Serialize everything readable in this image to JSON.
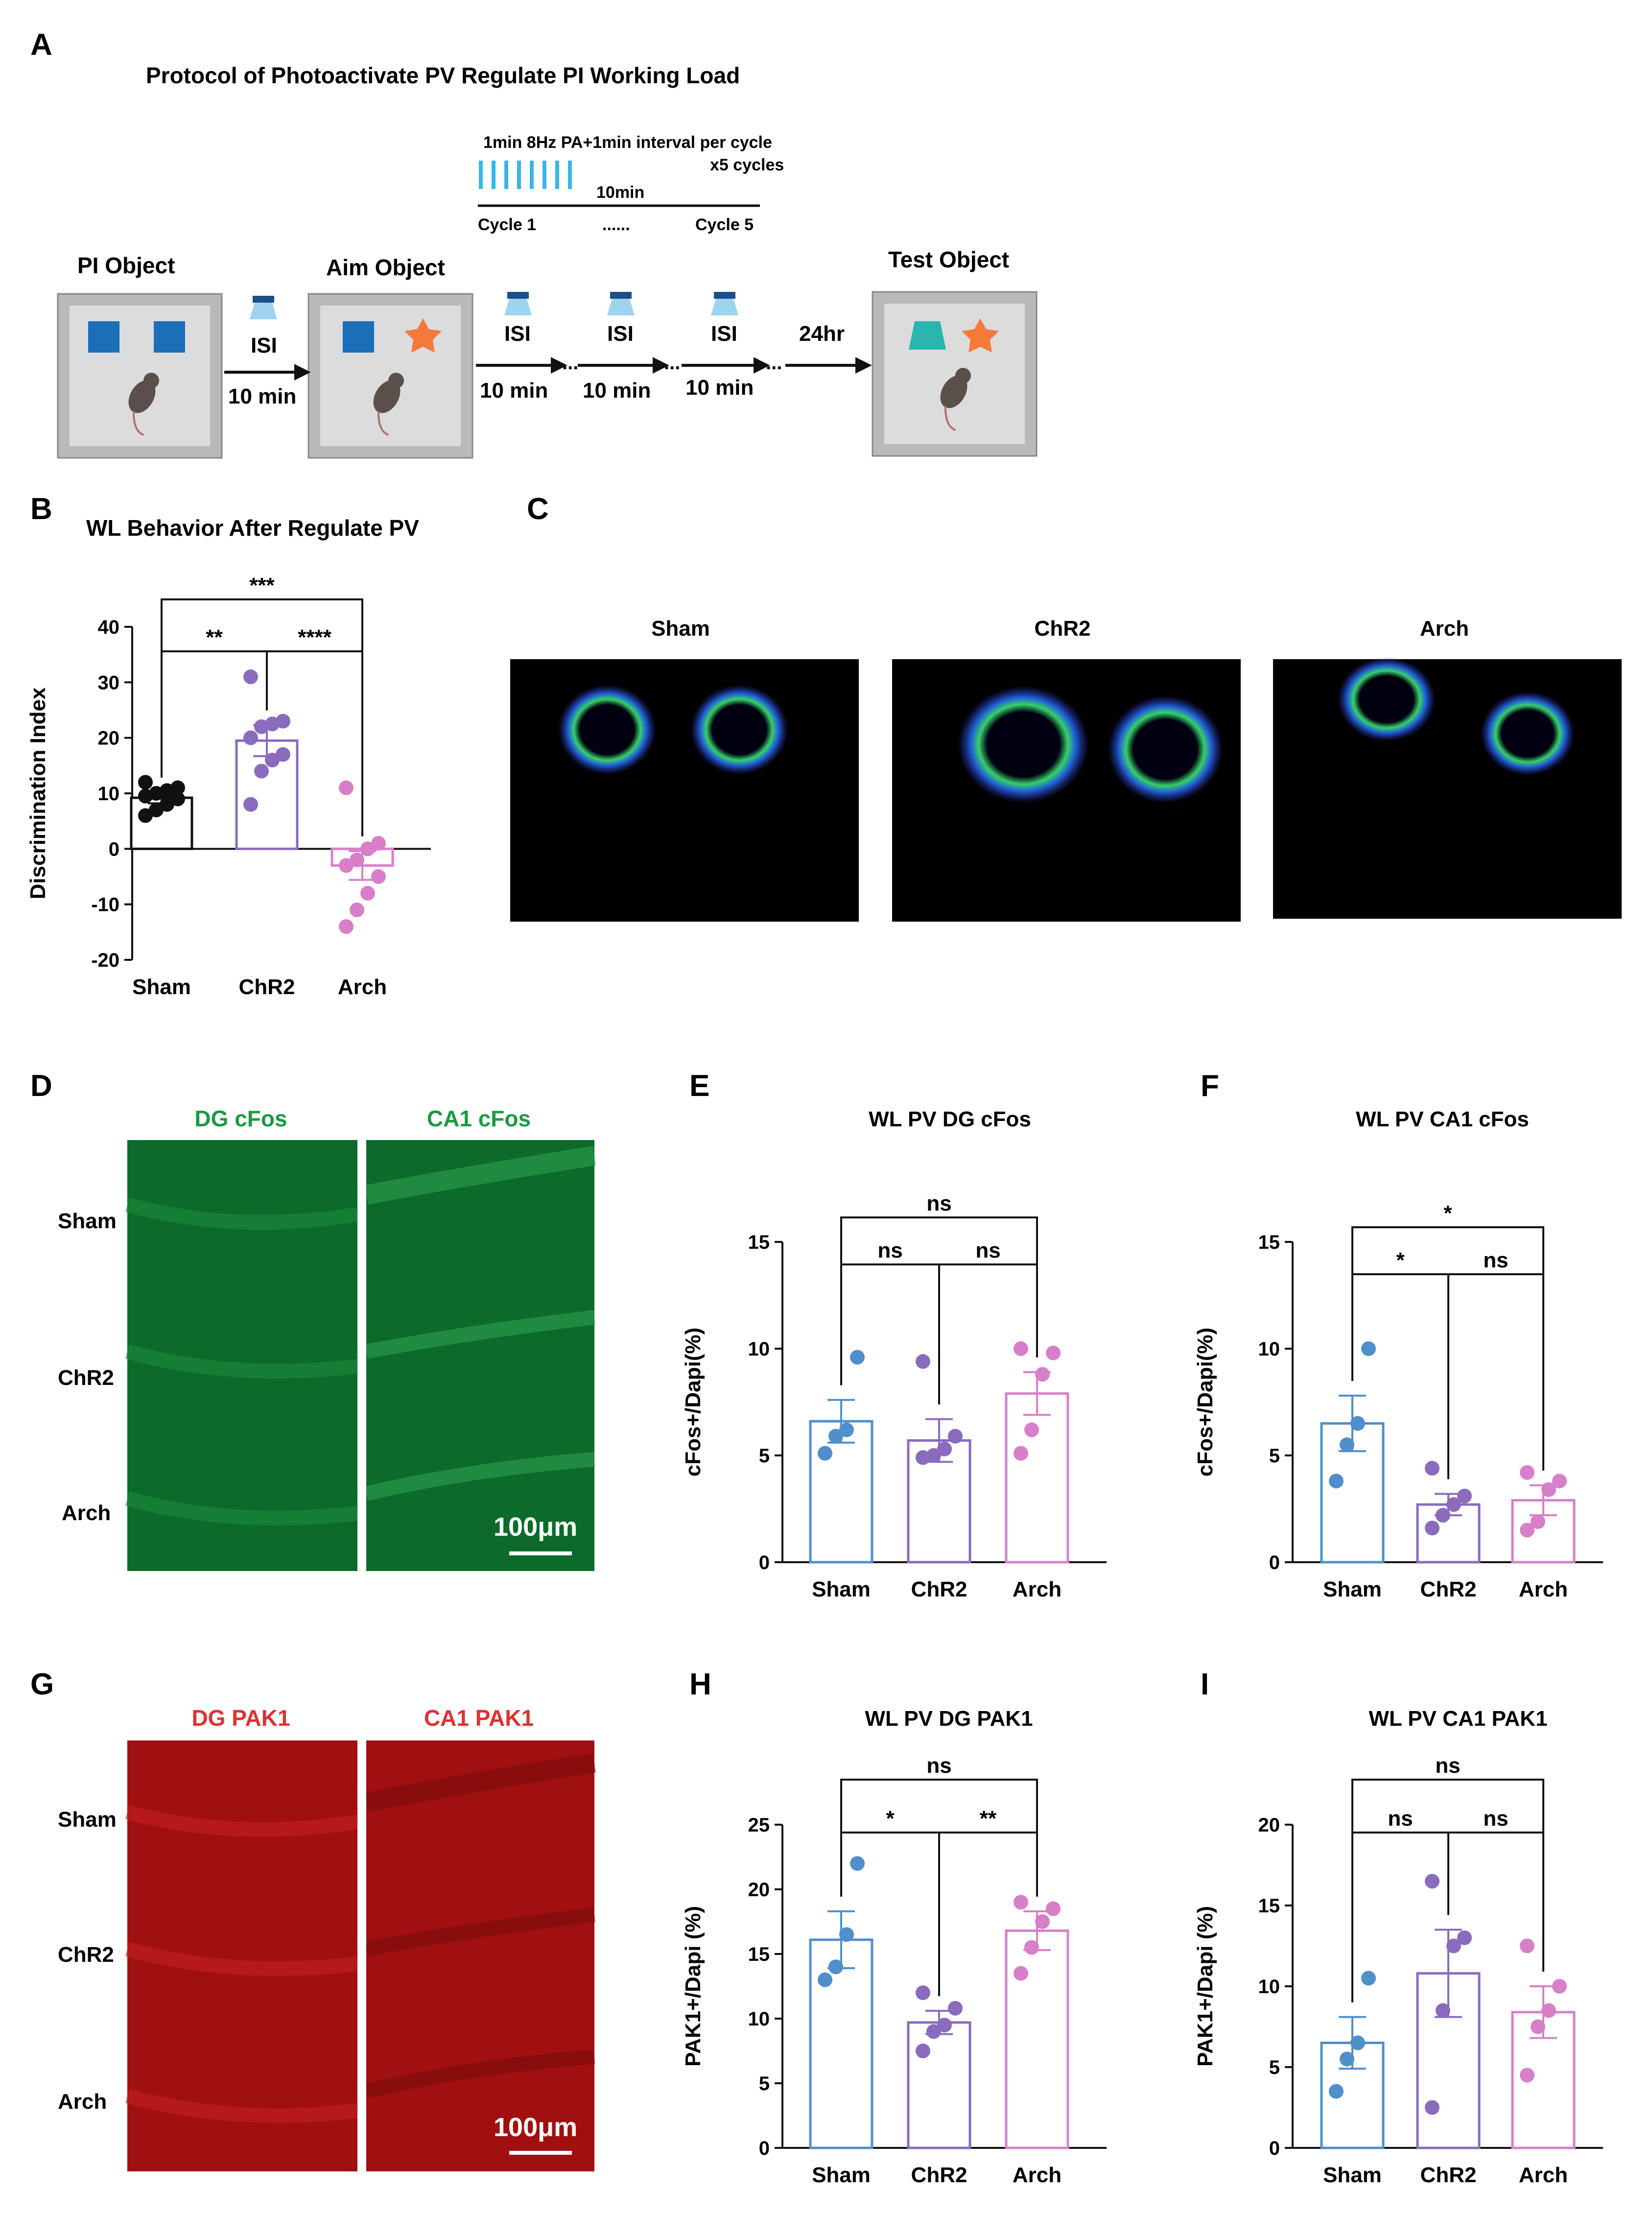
{
  "panel_letters": {
    "a": "A",
    "b": "B",
    "c": "C",
    "d": "D",
    "e": "E",
    "f": "F",
    "g": "G",
    "h": "H",
    "i": "I"
  },
  "panel_a": {
    "title": "Protocol of Photoactivate PV Regulate PI Working Load",
    "cycle_text_1": "1min 8Hz PA+1min interval per cycle",
    "cycle_text_2": "x5 cycles",
    "duration": "10min",
    "cycle_start": "Cycle 1",
    "cycle_dots": "......",
    "cycle_end": "Cycle 5",
    "pi_object": "PI Object",
    "aim_object": "Aim Object",
    "test_object": "Test Object",
    "isi": "ISI",
    "interval": "10 min",
    "dots": "...",
    "delay": "24hr",
    "colors": {
      "square": "#1b6fb8",
      "star": "#f47a3a",
      "trapezoid": "#2ab5b0",
      "light": "#38b6e8"
    }
  },
  "panel_b": {
    "title": "WL Behavior After Regulate PV",
    "ylabel": "Discrimination Index",
    "categories": [
      "Sham",
      "ChR2",
      "Arch"
    ],
    "sig": {
      "sham_arch": "***",
      "sham_chr2": "**",
      "chr2_arch": "****"
    }
  },
  "panel_c": {
    "labels": [
      "Sham",
      "ChR2",
      "Arch"
    ]
  },
  "panel_d": {
    "col1": "DG cFos",
    "col2": "CA1 cFos",
    "rows": [
      "Sham",
      "ChR2",
      "Arch"
    ],
    "scale": "100μm"
  },
  "panel_e": {
    "title": "WL PV DG cFos",
    "ylabel": "cFos+/Dapi(%)",
    "sig": {
      "outer": "ns",
      "left": "ns",
      "right": "ns"
    }
  },
  "panel_f": {
    "title": "WL PV CA1 cFos",
    "ylabel": "cFos+/Dapi(%)",
    "sig": {
      "outer": "*",
      "left": "*",
      "right": "ns"
    }
  },
  "panel_g": {
    "col1": "DG PAK1",
    "col2": "CA1 PAK1",
    "rows": [
      "Sham",
      "ChR2",
      "Arch"
    ],
    "scale": "100μm"
  },
  "panel_h": {
    "title": "WL PV DG PAK1",
    "ylabel": "PAK1+/Dapi (%)",
    "sig": {
      "outer": "ns",
      "left": "*",
      "right": "**"
    }
  },
  "panel_i": {
    "title": "WL PV CA1 PAK1",
    "ylabel": "PAK1+/Dapi (%)",
    "sig": {
      "outer": "ns",
      "left": "ns",
      "right": "ns"
    }
  },
  "chart_data": [
    {
      "id": "B",
      "type": "bar",
      "title": "WL Behavior After Regulate PV",
      "ylabel": "Discrimination Index",
      "ylim": [
        -20,
        40
      ],
      "yticks": [
        -20,
        -10,
        0,
        10,
        20,
        30,
        40
      ],
      "categories": [
        "Sham",
        "ChR2",
        "Arch"
      ],
      "values": [
        9.2,
        19.5,
        -3.0
      ],
      "sem": [
        1.0,
        2.8,
        2.6
      ],
      "points": [
        [
          6,
          7,
          8,
          9,
          9.5,
          10,
          10.5,
          11,
          12
        ],
        [
          8,
          14,
          16,
          17,
          20,
          22,
          22.5,
          23,
          31
        ],
        [
          -14,
          -11,
          -8,
          -5,
          -3,
          -2,
          0,
          1,
          11
        ]
      ],
      "colors": [
        "#111111",
        "#8a6bbd",
        "#d87fc9"
      ]
    },
    {
      "id": "E",
      "type": "bar",
      "title": "WL PV DG cFos",
      "ylabel": "cFos+/Dapi(%)",
      "ylim": [
        0,
        15
      ],
      "yticks": [
        0,
        5,
        10,
        15
      ],
      "categories": [
        "Sham",
        "ChR2",
        "Arch"
      ],
      "values": [
        6.6,
        5.7,
        7.9
      ],
      "sem": [
        1.0,
        1.0,
        1.0
      ],
      "points": [
        [
          5.1,
          5.9,
          6.2,
          9.6
        ],
        [
          4.9,
          5.0,
          5.3,
          5.9,
          9.4
        ],
        [
          5.1,
          6.2,
          8.8,
          9.8,
          10.0
        ]
      ],
      "colors": [
        "#4f8fcb",
        "#8a6bbd",
        "#d87fc9"
      ]
    },
    {
      "id": "F",
      "type": "bar",
      "title": "WL PV CA1 cFos",
      "ylabel": "cFos+/Dapi(%)",
      "ylim": [
        0,
        15
      ],
      "yticks": [
        0,
        5,
        10,
        15
      ],
      "categories": [
        "Sham",
        "ChR2",
        "Arch"
      ],
      "values": [
        6.5,
        2.7,
        2.9
      ],
      "sem": [
        1.3,
        0.5,
        0.7
      ],
      "points": [
        [
          3.8,
          5.5,
          6.5,
          10.0
        ],
        [
          1.6,
          2.2,
          2.7,
          3.1,
          4.4
        ],
        [
          1.5,
          1.9,
          3.4,
          3.8,
          4.2
        ]
      ],
      "colors": [
        "#4f8fcb",
        "#8a6bbd",
        "#d87fc9"
      ]
    },
    {
      "id": "H",
      "type": "bar",
      "title": "WL PV DG PAK1",
      "ylabel": "PAK1+/Dapi (%)",
      "ylim": [
        0,
        25
      ],
      "yticks": [
        0,
        5,
        10,
        15,
        20,
        25
      ],
      "categories": [
        "Sham",
        "ChR2",
        "Arch"
      ],
      "values": [
        16.1,
        9.7,
        16.8
      ],
      "sem": [
        2.2,
        0.9,
        1.5
      ],
      "points": [
        [
          13.0,
          14.0,
          16.5,
          22.0
        ],
        [
          7.5,
          9.0,
          9.5,
          10.8,
          12.0
        ],
        [
          13.5,
          15.5,
          17.5,
          18.5,
          19.0
        ]
      ],
      "colors": [
        "#4f8fcb",
        "#8a6bbd",
        "#d87fc9"
      ]
    },
    {
      "id": "I",
      "type": "bar",
      "title": "WL PV CA1 PAK1",
      "ylabel": "PAK1+/Dapi (%)",
      "ylim": [
        0,
        20
      ],
      "yticks": [
        0,
        5,
        10,
        15,
        20
      ],
      "categories": [
        "Sham",
        "ChR2",
        "Arch"
      ],
      "values": [
        6.5,
        10.8,
        8.4
      ],
      "sem": [
        1.6,
        2.7,
        1.6
      ],
      "points": [
        [
          3.5,
          5.5,
          6.5,
          10.5
        ],
        [
          2.5,
          8.5,
          12.5,
          13.0,
          16.5
        ],
        [
          4.5,
          7.5,
          8.5,
          10.0,
          12.5
        ]
      ],
      "colors": [
        "#4f8fcb",
        "#8a6bbd",
        "#d87fc9"
      ]
    }
  ]
}
